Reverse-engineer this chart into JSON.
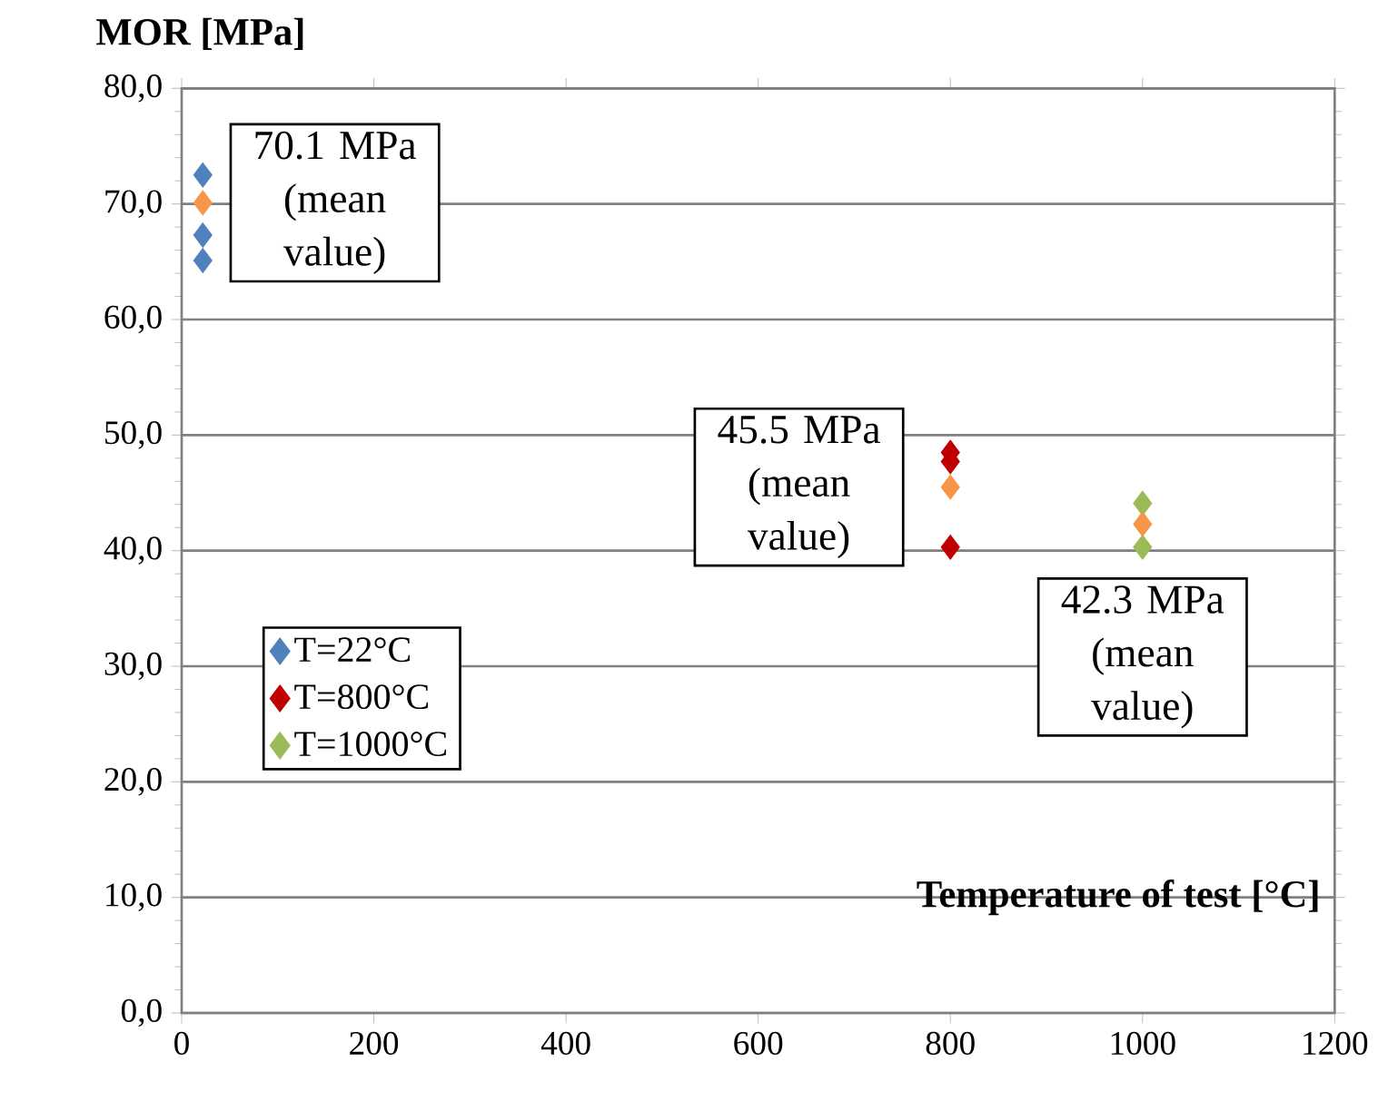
{
  "chart_data": {
    "type": "scatter",
    "xlabel": "Temperature of test [°C]",
    "ylabel": "MOR [MPa]",
    "xlim": [
      0,
      1200
    ],
    "xticks": [
      0,
      200,
      400,
      600,
      800,
      1000,
      1200
    ],
    "ylim": [
      0,
      80
    ],
    "yticks": [
      {
        "value": 0,
        "label": "0,0"
      },
      {
        "value": 10,
        "label": "10,0"
      },
      {
        "value": 20,
        "label": "20,0"
      },
      {
        "value": 30,
        "label": "30,0"
      },
      {
        "value": 40,
        "label": "40,0"
      },
      {
        "value": 50,
        "label": "50,0"
      },
      {
        "value": 60,
        "label": "60,0"
      },
      {
        "value": 70,
        "label": "70,0"
      },
      {
        "value": 80,
        "label": "80,0"
      }
    ],
    "grid": "y",
    "legend": "left",
    "marker": "diamond",
    "series": [
      {
        "name": "T=22°C",
        "color": "#4f81bd",
        "x": [
          22,
          22,
          22
        ],
        "values": [
          72.5,
          67.3,
          65.1
        ]
      },
      {
        "name": "T=800°C",
        "color": "#c00000",
        "x": [
          800,
          800,
          800
        ],
        "values": [
          48.5,
          47.7,
          40.3
        ]
      },
      {
        "name": "T=1000°C",
        "color": "#9bbb59",
        "x": [
          1000,
          1000
        ],
        "values": [
          44.1,
          40.3
        ]
      },
      {
        "color": "#f79646",
        "x": [
          22,
          800,
          1000
        ],
        "values": [
          70.1,
          45.5,
          42.3
        ]
      }
    ],
    "annotations": [
      {
        "text": "70.1 MPa (mean value)",
        "x": 22,
        "y": 70.1
      },
      {
        "text": "45.5 MPa (mean value)",
        "x": 800,
        "y": 45.5
      },
      {
        "text": "42.3 MPa (mean value)",
        "x": 1000,
        "y": 42.3
      }
    ]
  }
}
